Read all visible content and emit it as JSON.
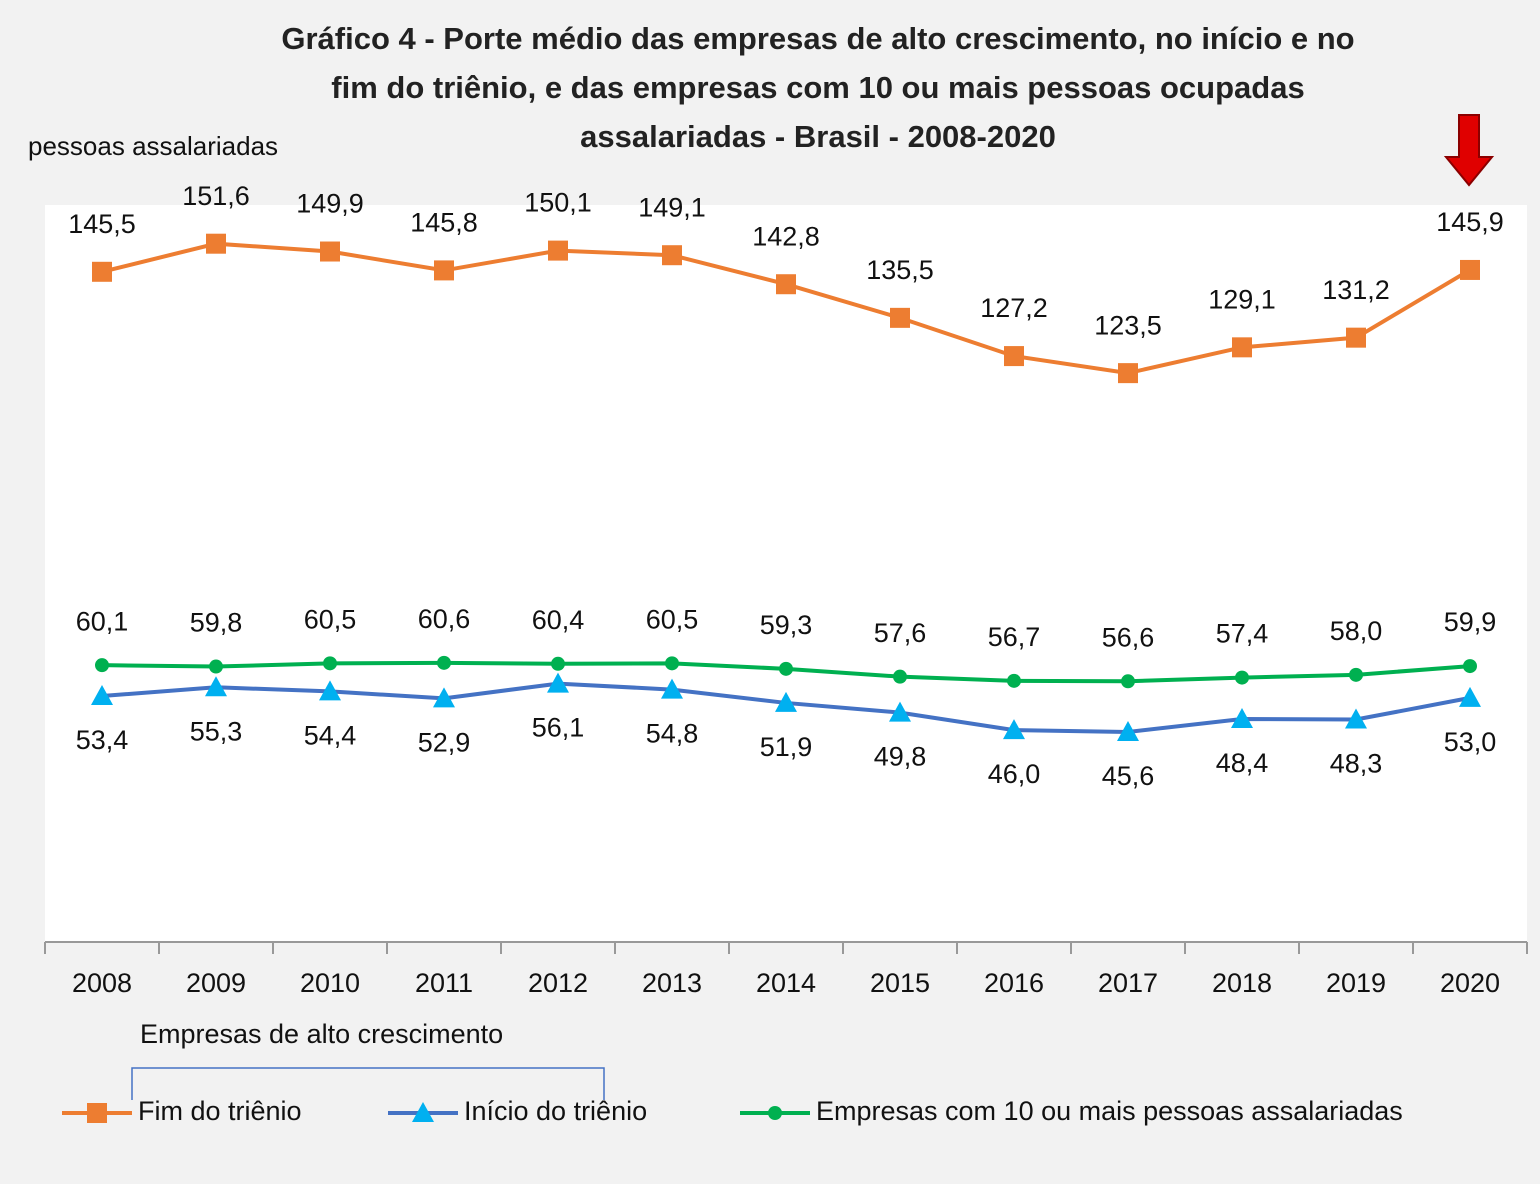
{
  "chart_data": {
    "type": "line",
    "title": "Gráfico 4 - Porte médio das empresas de alto crescimento, no início e no fim do triênio, e das empresas com 10 ou mais pessoas ocupadas assalariadas - Brasil - 2008-2020",
    "y_label": "pessoas assalariadas",
    "legend_group": "Empresas de alto crescimento",
    "categories": [
      "2008",
      "2009",
      "2010",
      "2011",
      "2012",
      "2013",
      "2014",
      "2015",
      "2016",
      "2017",
      "2018",
      "2019",
      "2020"
    ],
    "ylim": [
      0,
      160
    ],
    "series": [
      {
        "name": "Fim do triênio",
        "color": "#ed7d31",
        "marker": "square",
        "marker_color": "#ed7d31",
        "values": [
          145.5,
          151.6,
          149.9,
          145.8,
          150.1,
          149.1,
          142.8,
          135.5,
          127.2,
          123.5,
          129.1,
          131.2,
          145.9
        ],
        "value_labels": [
          "145,5",
          "151,6",
          "149,9",
          "145,8",
          "150,1",
          "149,1",
          "142,8",
          "135,5",
          "127,2",
          "123,5",
          "129,1",
          "131,2",
          "145,9"
        ]
      },
      {
        "name": "Início do triênio",
        "color": "#4472c4",
        "marker": "triangle",
        "marker_color": "#00b0f0",
        "values": [
          53.4,
          55.3,
          54.4,
          52.9,
          56.1,
          54.8,
          51.9,
          49.8,
          46.0,
          45.6,
          48.4,
          48.3,
          53.0
        ],
        "value_labels": [
          "53,4",
          "55,3",
          "54,4",
          "52,9",
          "56,1",
          "54,8",
          "51,9",
          "49,8",
          "46,0",
          "45,6",
          "48,4",
          "48,3",
          "53,0"
        ]
      },
      {
        "name": "Empresas com 10 ou mais pessoas assalariadas",
        "color": "#00b050",
        "marker": "circle",
        "marker_color": "#00b050",
        "values": [
          60.1,
          59.8,
          60.5,
          60.6,
          60.4,
          60.5,
          59.3,
          57.6,
          56.7,
          56.6,
          57.4,
          58.0,
          59.9
        ],
        "value_labels": [
          "60,1",
          "59,8",
          "60,5",
          "60,6",
          "60,4",
          "60,5",
          "59,3",
          "57,6",
          "56,7",
          "56,6",
          "57,4",
          "58,0",
          "59,9"
        ]
      }
    ]
  }
}
